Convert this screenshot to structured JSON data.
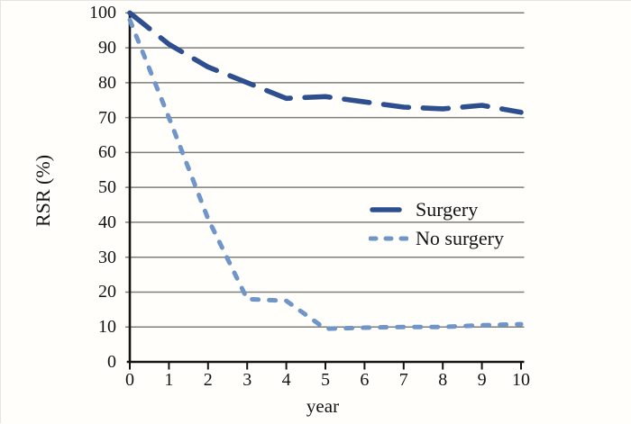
{
  "figure": {
    "background": "#fffefa"
  },
  "colors": {
    "surgery_line": "#2e4f8f",
    "no_surgery_line": "#7095c8",
    "gridline": "#7f7f7a",
    "axis": "#141414"
  },
  "chart_data": {
    "type": "line",
    "title": "",
    "xlabel": "year",
    "ylabel": "RSR (%)",
    "x": [
      0,
      1,
      2,
      3,
      4,
      5,
      6,
      7,
      8,
      9,
      10
    ],
    "series": [
      {
        "name": "Surgery",
        "color": "#2e4f8f",
        "line_style": "long-dash",
        "values": [
          100,
          91,
          84.5,
          80,
          75.5,
          76,
          74.5,
          73,
          72.5,
          73.5,
          71.5
        ]
      },
      {
        "name": "No surgery",
        "color": "#7095c8",
        "line_style": "short-dash",
        "values": [
          98,
          70,
          41,
          18,
          17.5,
          9.5,
          9.8,
          10,
          10,
          10.5,
          10.8
        ]
      }
    ],
    "xlim": [
      0,
      10
    ],
    "ylim": [
      0,
      100
    ],
    "xticks": [
      0,
      1,
      2,
      3,
      4,
      5,
      6,
      7,
      8,
      9,
      10
    ],
    "yticks": [
      0,
      10,
      20,
      30,
      40,
      50,
      60,
      70,
      80,
      90,
      100
    ],
    "grid": "horizontal",
    "legend_position": "middle-right"
  }
}
